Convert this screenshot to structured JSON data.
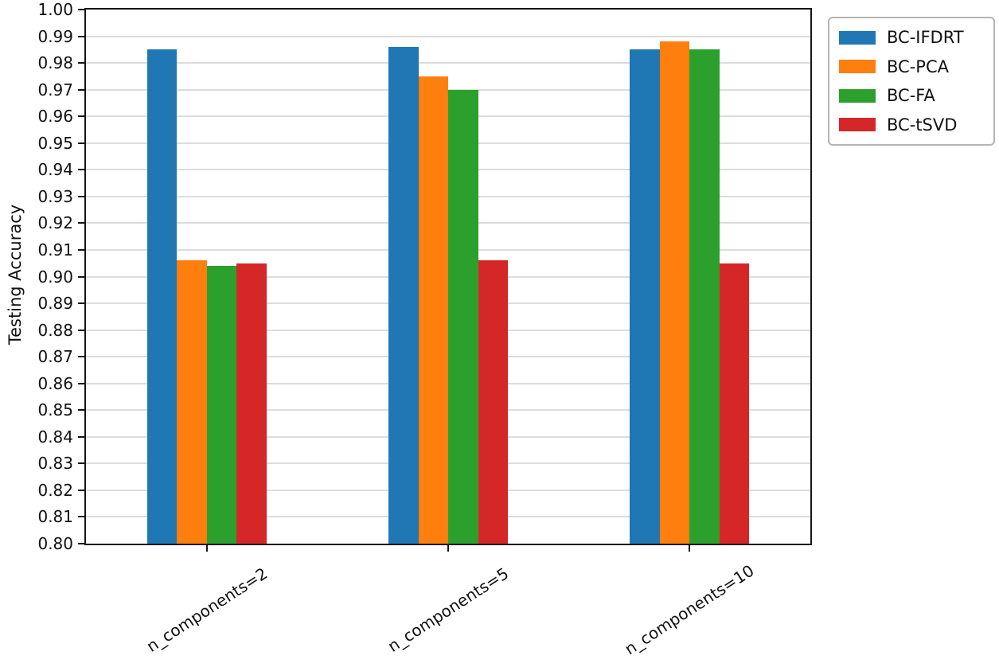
{
  "chart_data": {
    "type": "bar",
    "title": "",
    "xlabel": "",
    "ylabel": "Testing Accuracy",
    "categories": [
      "n_components=2",
      "n_components=5",
      "n_components=10"
    ],
    "series": [
      {
        "name": "BC-IFDRT",
        "color": "#1f77b4",
        "values": [
          0.985,
          0.986,
          0.985
        ]
      },
      {
        "name": "BC-PCA",
        "color": "#ff7f0e",
        "values": [
          0.906,
          0.975,
          0.988
        ]
      },
      {
        "name": "BC-FA",
        "color": "#2ca02c",
        "values": [
          0.904,
          0.97,
          0.985
        ]
      },
      {
        "name": "BC-tSVD",
        "color": "#d62728",
        "values": [
          0.905,
          0.906,
          0.905
        ]
      }
    ],
    "ylim": [
      0.8,
      1.0
    ],
    "ytick_step": 0.01,
    "ytick_labels": [
      "0.80",
      "0.81",
      "0.82",
      "0.83",
      "0.84",
      "0.85",
      "0.86",
      "0.87",
      "0.88",
      "0.89",
      "0.90",
      "0.91",
      "0.92",
      "0.93",
      "0.94",
      "0.95",
      "0.96",
      "0.97",
      "0.98",
      "0.99",
      "1.00"
    ],
    "grid": true,
    "gridline_color": "#dcdcdc",
    "legend_position": "outside upper right",
    "legend_items": [
      "BC-IFDRT",
      "BC-PCA",
      "BC-FA",
      "BC-tSVD"
    ]
  }
}
